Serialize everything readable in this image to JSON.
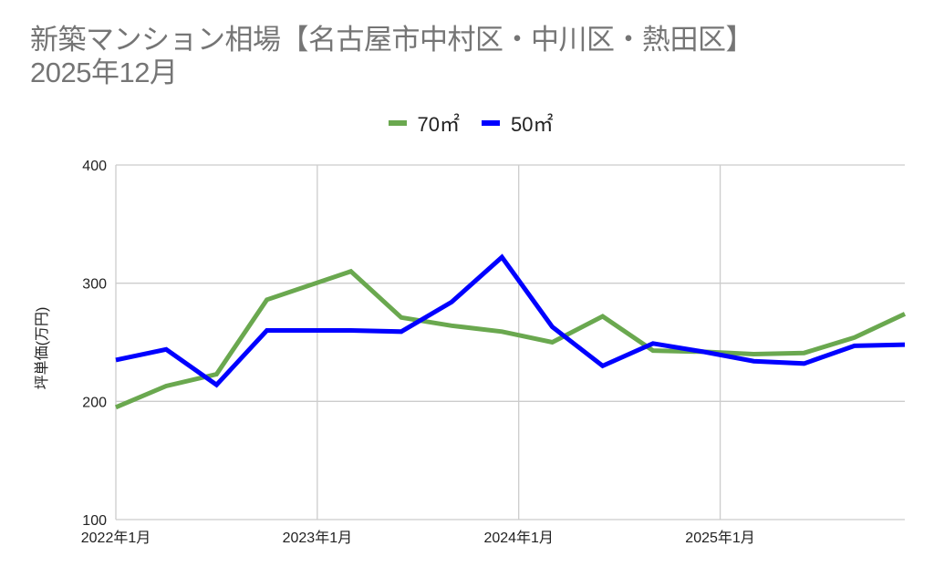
{
  "title": {
    "line1": "新築マンション相場【名古屋市中村区・中川区・熱田区】",
    "line2": "2025年12月"
  },
  "legend": [
    {
      "label": "70㎡",
      "color": "#6aa84f"
    },
    {
      "label": "50㎡",
      "color": "#0000ff"
    }
  ],
  "colors": {
    "series_70": "#6aa84f",
    "series_50": "#0000ff",
    "gridline": "#cccccc",
    "title": "#757575"
  },
  "chart_data": {
    "type": "line",
    "title": "新築マンション相場【名古屋市中村区・中川区・熱田区】 2025年12月",
    "xlabel": "",
    "ylabel": "坪単価(万円)",
    "ylim": [
      100,
      400
    ],
    "yticks": [
      100,
      200,
      300,
      400
    ],
    "xticks": [
      "2022年1月",
      "2023年1月",
      "2024年1月",
      "2025年1月"
    ],
    "grid": true,
    "legend_position": "top",
    "x": [
      "2022-01",
      "2022-04",
      "2022-07",
      "2022-10",
      "2023-03",
      "2023-06",
      "2023-09",
      "2023-12",
      "2024-03",
      "2024-06",
      "2024-09",
      "2024-12",
      "2025-03",
      "2025-06",
      "2025-09",
      "2025-12"
    ],
    "series": [
      {
        "name": "70㎡",
        "color": "#6aa84f",
        "values": [
          195,
          213,
          223,
          286,
          310,
          271,
          264,
          259,
          250,
          272,
          243,
          242,
          240,
          241,
          254,
          274
        ]
      },
      {
        "name": "50㎡",
        "color": "#0000ff",
        "values": [
          235,
          244,
          214,
          260,
          260,
          259,
          284,
          322,
          263,
          230,
          249,
          242,
          234,
          232,
          247,
          248
        ]
      }
    ]
  }
}
